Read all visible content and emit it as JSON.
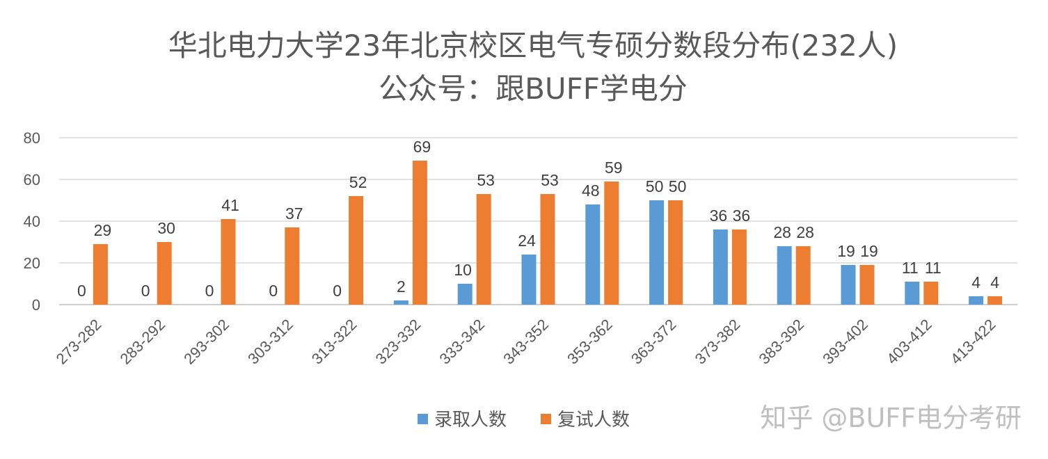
{
  "chart_data": {
    "type": "bar",
    "title": "华北电力大学23年北京校区电气专硕分数段分布(232人)",
    "subtitle": "公众号：跟BUFF学电分",
    "categories": [
      "273-282",
      "283-292",
      "293-302",
      "303-312",
      "313-322",
      "323-332",
      "333-342",
      "343-352",
      "353-362",
      "363-372",
      "373-382",
      "383-392",
      "393-402",
      "403-412",
      "413-422"
    ],
    "series": [
      {
        "name": "录取人数",
        "color": "#5B9BD5",
        "values": [
          0,
          0,
          0,
          0,
          0,
          2,
          10,
          24,
          48,
          50,
          36,
          28,
          19,
          11,
          4
        ]
      },
      {
        "name": "复试人数",
        "color": "#ED7D31",
        "values": [
          29,
          30,
          41,
          37,
          52,
          69,
          53,
          53,
          59,
          50,
          36,
          28,
          19,
          11,
          4
        ]
      }
    ],
    "yticks": [
      "0",
      "20",
      "40",
      "60",
      "80"
    ],
    "ylim": [
      0,
      80
    ],
    "grid": true,
    "legend_position": "bottom"
  },
  "watermark": "知乎 @BUFF电分考研"
}
